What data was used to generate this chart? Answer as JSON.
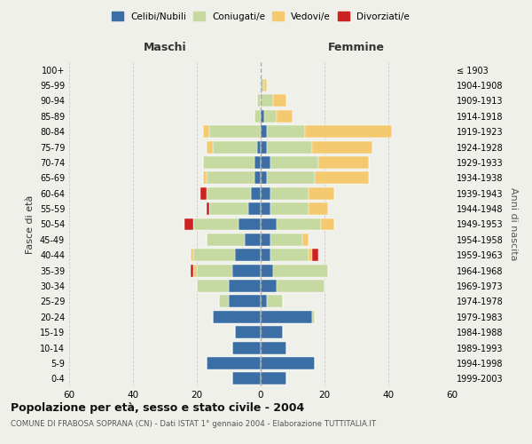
{
  "age_groups": [
    "0-4",
    "5-9",
    "10-14",
    "15-19",
    "20-24",
    "25-29",
    "30-34",
    "35-39",
    "40-44",
    "45-49",
    "50-54",
    "55-59",
    "60-64",
    "65-69",
    "70-74",
    "75-79",
    "80-84",
    "85-89",
    "90-94",
    "95-99",
    "100+"
  ],
  "birth_years": [
    "1999-2003",
    "1994-1998",
    "1989-1993",
    "1984-1988",
    "1979-1983",
    "1974-1978",
    "1969-1973",
    "1964-1968",
    "1959-1963",
    "1954-1958",
    "1949-1953",
    "1944-1948",
    "1939-1943",
    "1934-1938",
    "1929-1933",
    "1924-1928",
    "1919-1923",
    "1914-1918",
    "1909-1913",
    "1904-1908",
    "≤ 1903"
  ],
  "male": {
    "celibi": [
      9,
      17,
      9,
      8,
      15,
      10,
      10,
      9,
      8,
      5,
      7,
      4,
      3,
      2,
      2,
      1,
      0,
      0,
      0,
      0,
      0
    ],
    "coniugati": [
      0,
      0,
      0,
      0,
      0,
      3,
      10,
      11,
      13,
      12,
      14,
      12,
      14,
      15,
      16,
      14,
      16,
      2,
      1,
      0,
      0
    ],
    "vedovi": [
      0,
      0,
      0,
      0,
      0,
      0,
      0,
      1,
      1,
      0,
      0,
      0,
      0,
      1,
      0,
      2,
      2,
      0,
      0,
      0,
      0
    ],
    "divorziati": [
      0,
      0,
      0,
      0,
      0,
      0,
      0,
      1,
      0,
      0,
      3,
      1,
      2,
      0,
      0,
      0,
      0,
      0,
      0,
      0,
      0
    ]
  },
  "female": {
    "nubili": [
      8,
      17,
      8,
      7,
      16,
      2,
      5,
      4,
      3,
      3,
      5,
      3,
      3,
      2,
      3,
      2,
      2,
      1,
      0,
      0,
      0
    ],
    "coniugate": [
      0,
      0,
      0,
      0,
      1,
      5,
      15,
      17,
      12,
      10,
      14,
      12,
      12,
      15,
      15,
      14,
      12,
      4,
      4,
      1,
      0
    ],
    "vedove": [
      0,
      0,
      0,
      0,
      0,
      0,
      0,
      0,
      1,
      2,
      4,
      6,
      8,
      17,
      16,
      19,
      27,
      5,
      4,
      1,
      0
    ],
    "divorziate": [
      0,
      0,
      0,
      0,
      0,
      0,
      0,
      0,
      2,
      0,
      0,
      0,
      0,
      0,
      0,
      0,
      0,
      0,
      0,
      0,
      0
    ]
  },
  "colors": {
    "celibi": "#3a6ea5",
    "coniugati": "#c5d9a0",
    "vedovi": "#f5c970",
    "divorziati": "#cc2222"
  },
  "title": "Popolazione per età, sesso e stato civile - 2004",
  "subtitle": "COMUNE DI FRABOSA SOPRANA (CN) - Dati ISTAT 1° gennaio 2004 - Elaborazione TUTTITALIA.IT",
  "xlabel_maschi": "Maschi",
  "xlabel_femmine": "Femmine",
  "ylabel_left": "Fasce di età",
  "ylabel_right": "Anni di nascita",
  "xlim": 60,
  "bg_color": "#f0f0eb",
  "grid_color": "#cccccc"
}
